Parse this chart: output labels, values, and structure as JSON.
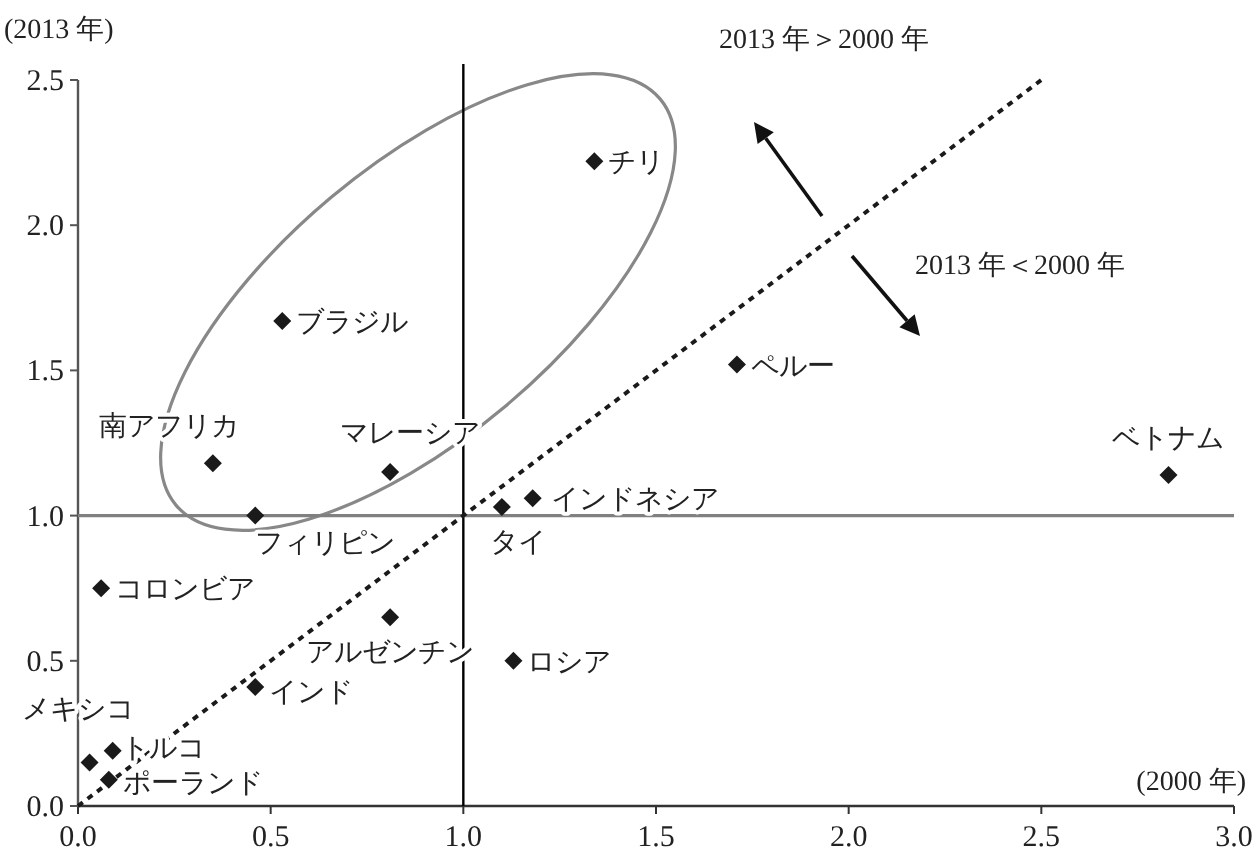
{
  "chart_data": {
    "type": "scatter",
    "xlabel": "(2000 年)",
    "ylabel": "(2013 年)",
    "xlim": [
      0,
      3
    ],
    "ylim": [
      0,
      2.5
    ],
    "xticks": [
      {
        "value": 0,
        "label": "0.0"
      },
      {
        "value": 0.5,
        "label": "0.5"
      },
      {
        "value": 1,
        "label": "1.0"
      },
      {
        "value": 1.5,
        "label": "1.5"
      },
      {
        "value": 2,
        "label": "2.0"
      },
      {
        "value": 2.5,
        "label": "2.5"
      },
      {
        "value": 3,
        "label": "3.0"
      }
    ],
    "yticks": [
      {
        "value": 0,
        "label": "0.0"
      },
      {
        "value": 0.5,
        "label": "0.5"
      },
      {
        "value": 1,
        "label": "1.0"
      },
      {
        "value": 1.5,
        "label": "1.5"
      },
      {
        "value": 2,
        "label": "2.0"
      },
      {
        "value": 2.5,
        "label": "2.5"
      }
    ],
    "grid": false,
    "marker": "diamond",
    "series": [
      {
        "type": "scatter",
        "color": "#1a1a1a",
        "x": [
          1.34,
          0.53,
          0.35,
          0.81,
          0.46,
          1.1,
          1.18,
          0.06,
          0.81,
          1.13,
          0.46,
          0.03,
          0.09,
          0.08,
          1.71,
          2.83
        ],
        "values": [
          2.22,
          1.67,
          1.18,
          1.15,
          1.0,
          1.03,
          1.06,
          0.75,
          0.65,
          0.5,
          0.41,
          0.15,
          0.19,
          0.09,
          1.52,
          1.14
        ]
      },
      {
        "type": "line",
        "color": "#1a1a1a",
        "line_style": "dotted",
        "marker": "none",
        "x": [
          0,
          2.5
        ],
        "values": [
          0,
          2.5
        ]
      }
    ],
    "ref_lines": [
      {
        "axis": "x",
        "value": 1,
        "color": "#000000"
      },
      {
        "axis": "y",
        "value": 1,
        "color": "#808080"
      }
    ],
    "annotations": [
      {
        "text": "チリ",
        "x": 1.34,
        "y": 2.22
      },
      {
        "text": "ブラジル",
        "x": 0.53,
        "y": 1.67
      },
      {
        "text": "南アフリカ",
        "x": 0.35,
        "y": 1.18
      },
      {
        "text": "マレーシア",
        "x": 0.81,
        "y": 1.15
      },
      {
        "text": "フィリピン",
        "x": 0.46,
        "y": 1.0
      },
      {
        "text": "タイ",
        "x": 1.1,
        "y": 1.03
      },
      {
        "text": "インドネシア",
        "x": 1.18,
        "y": 1.06
      },
      {
        "text": "コロンビア",
        "x": 0.06,
        "y": 0.75
      },
      {
        "text": "アルゼンチン",
        "x": 0.81,
        "y": 0.65
      },
      {
        "text": "ロシア",
        "x": 1.13,
        "y": 0.5
      },
      {
        "text": "インド",
        "x": 0.46,
        "y": 0.41
      },
      {
        "text": "メキシコ",
        "x": 0.03,
        "y": 0.15
      },
      {
        "text": "トルコ",
        "x": 0.09,
        "y": 0.19
      },
      {
        "text": "ポーランド",
        "x": 0.08,
        "y": 0.09
      },
      {
        "text": "ペルー",
        "x": 1.71,
        "y": 1.52
      },
      {
        "text": "ベトナム",
        "x": 2.83,
        "y": 1.14
      },
      "2013 年＞2000 年",
      "2013 年＜2000 年"
    ]
  }
}
